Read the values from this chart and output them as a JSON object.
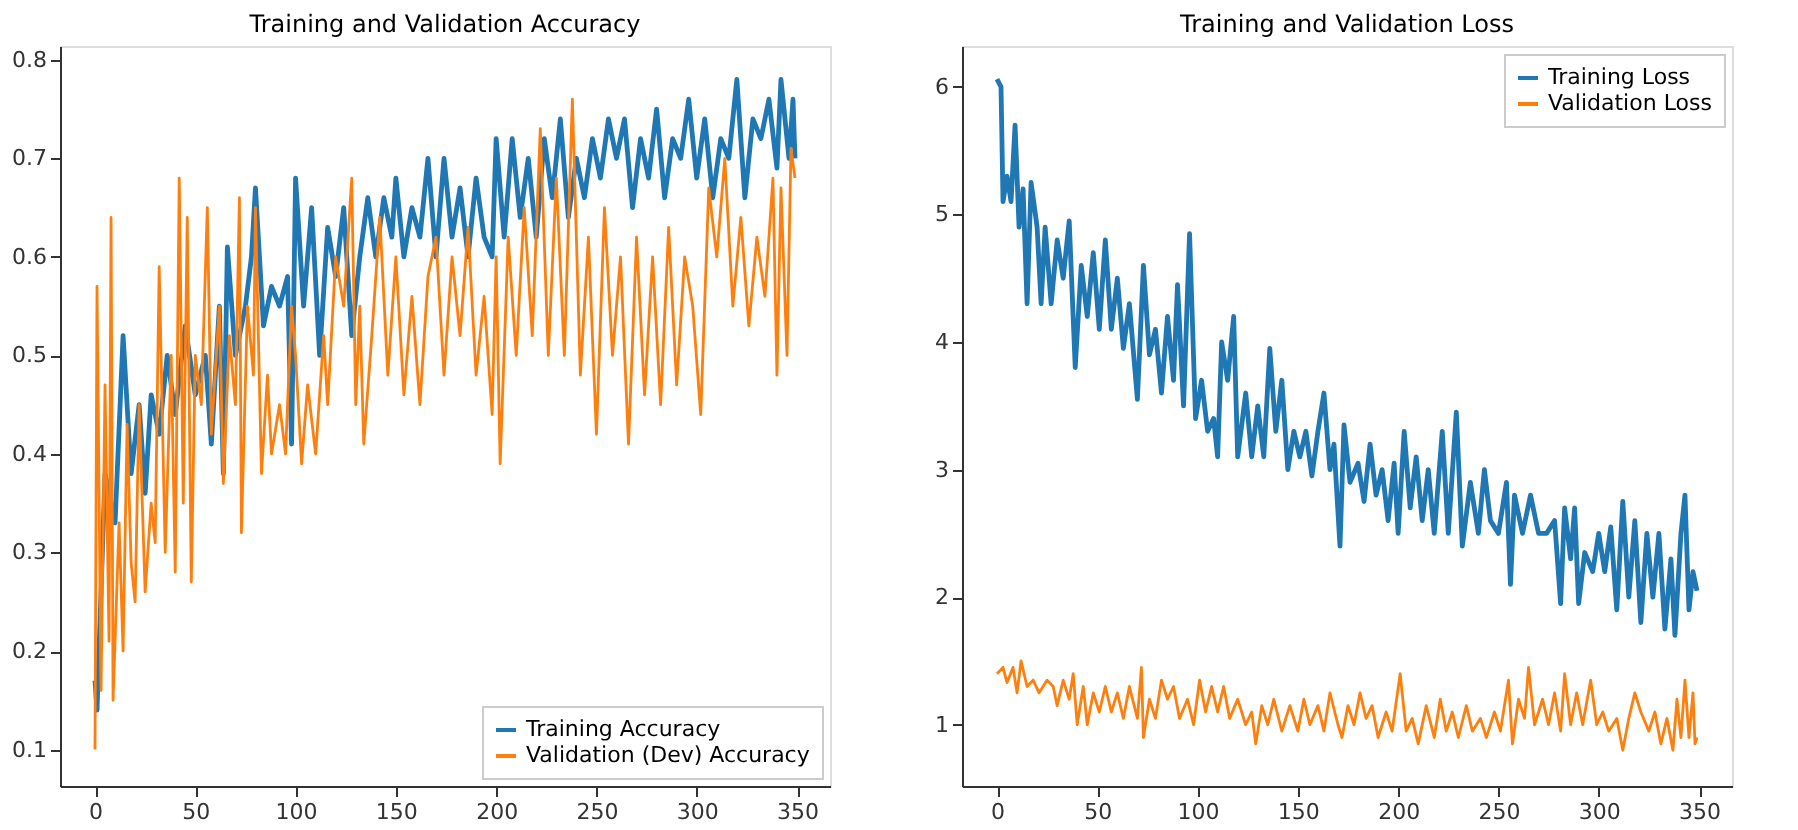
{
  "chart_data": [
    {
      "type": "line",
      "title": "Training and Validation Accuracy",
      "xlim": [
        -17.45,
        366.45
      ],
      "ylim": [
        0.063,
        0.814
      ],
      "xticks": [
        0,
        50,
        100,
        150,
        200,
        250,
        300,
        350
      ],
      "yticks": [
        0.1,
        0.2,
        0.3,
        0.4,
        0.5,
        0.6,
        0.7,
        0.8
      ],
      "grid": false,
      "legend": "bottom right",
      "series": [
        {
          "name": "Training Accuracy",
          "color": "#1f77b4",
          "x": [
            0,
            1,
            5,
            10,
            14,
            18,
            22,
            25,
            28,
            32,
            36,
            40,
            45,
            50,
            55,
            58,
            62,
            64,
            66,
            70,
            75,
            78,
            80,
            84,
            88,
            92,
            96,
            98,
            100,
            104,
            108,
            112,
            116,
            120,
            124,
            128,
            132,
            136,
            140,
            144,
            148,
            150,
            154,
            158,
            162,
            166,
            170,
            174,
            178,
            182,
            186,
            190,
            194,
            198,
            200,
            204,
            208,
            212,
            216,
            220,
            224,
            228,
            232,
            236,
            240,
            244,
            248,
            252,
            256,
            260,
            264,
            268,
            272,
            276,
            280,
            284,
            288,
            292,
            296,
            300,
            304,
            308,
            312,
            316,
            320,
            324,
            328,
            332,
            336,
            340,
            342,
            346,
            348,
            349
          ],
          "values": [
            0.17,
            0.14,
            0.38,
            0.33,
            0.52,
            0.38,
            0.45,
            0.36,
            0.46,
            0.42,
            0.5,
            0.44,
            0.53,
            0.46,
            0.5,
            0.41,
            0.55,
            0.38,
            0.61,
            0.5,
            0.55,
            0.6,
            0.67,
            0.53,
            0.57,
            0.55,
            0.58,
            0.41,
            0.68,
            0.55,
            0.65,
            0.5,
            0.63,
            0.58,
            0.65,
            0.52,
            0.6,
            0.66,
            0.6,
            0.66,
            0.62,
            0.68,
            0.6,
            0.65,
            0.62,
            0.7,
            0.6,
            0.7,
            0.62,
            0.67,
            0.6,
            0.68,
            0.62,
            0.6,
            0.72,
            0.62,
            0.72,
            0.64,
            0.7,
            0.62,
            0.72,
            0.66,
            0.74,
            0.64,
            0.7,
            0.66,
            0.72,
            0.68,
            0.74,
            0.7,
            0.74,
            0.65,
            0.72,
            0.68,
            0.75,
            0.66,
            0.72,
            0.7,
            0.76,
            0.68,
            0.74,
            0.66,
            0.72,
            0.7,
            0.78,
            0.66,
            0.74,
            0.72,
            0.76,
            0.69,
            0.78,
            0.7,
            0.76,
            0.7
          ]
        },
        {
          "name": "Validation (Dev) Accuracy",
          "color": "#ff7f0e",
          "x": [
            0,
            1,
            3,
            5,
            7,
            8,
            9,
            12,
            14,
            16,
            18,
            20,
            22,
            25,
            28,
            30,
            32,
            35,
            38,
            40,
            42,
            44,
            46,
            48,
            50,
            53,
            56,
            58,
            62,
            64,
            67,
            70,
            72,
            73,
            76,
            79,
            80,
            83,
            86,
            88,
            92,
            95,
            98,
            100,
            103,
            106,
            110,
            114,
            116,
            120,
            124,
            128,
            130,
            132,
            134,
            138,
            142,
            146,
            150,
            154,
            158,
            162,
            166,
            170,
            174,
            178,
            182,
            186,
            190,
            194,
            198,
            200,
            202,
            206,
            210,
            214,
            218,
            222,
            226,
            230,
            234,
            238,
            242,
            246,
            250,
            254,
            258,
            262,
            266,
            270,
            274,
            278,
            282,
            286,
            290,
            294,
            298,
            302,
            306,
            310,
            314,
            318,
            322,
            326,
            330,
            334,
            338,
            340,
            342,
            345,
            347,
            349
          ],
          "values": [
            0.1,
            0.57,
            0.16,
            0.47,
            0.21,
            0.64,
            0.15,
            0.33,
            0.2,
            0.43,
            0.29,
            0.25,
            0.45,
            0.26,
            0.35,
            0.31,
            0.59,
            0.3,
            0.5,
            0.28,
            0.68,
            0.35,
            0.64,
            0.27,
            0.5,
            0.45,
            0.65,
            0.42,
            0.55,
            0.37,
            0.52,
            0.45,
            0.66,
            0.32,
            0.55,
            0.48,
            0.65,
            0.38,
            0.48,
            0.4,
            0.45,
            0.4,
            0.55,
            0.5,
            0.39,
            0.47,
            0.4,
            0.52,
            0.45,
            0.6,
            0.55,
            0.68,
            0.45,
            0.55,
            0.41,
            0.52,
            0.64,
            0.48,
            0.6,
            0.46,
            0.56,
            0.45,
            0.58,
            0.62,
            0.48,
            0.6,
            0.52,
            0.63,
            0.48,
            0.56,
            0.44,
            0.6,
            0.39,
            0.62,
            0.5,
            0.65,
            0.52,
            0.73,
            0.5,
            0.68,
            0.5,
            0.76,
            0.48,
            0.62,
            0.42,
            0.65,
            0.5,
            0.6,
            0.41,
            0.62,
            0.46,
            0.6,
            0.45,
            0.63,
            0.47,
            0.6,
            0.55,
            0.44,
            0.67,
            0.6,
            0.7,
            0.55,
            0.64,
            0.53,
            0.62,
            0.56,
            0.68,
            0.48,
            0.67,
            0.5,
            0.71,
            0.68
          ]
        }
      ]
    },
    {
      "type": "line",
      "title": "Training and Validation Loss",
      "xlim": [
        -17.45,
        366.45
      ],
      "ylim": [
        0.52,
        6.32
      ],
      "xticks": [
        0,
        50,
        100,
        150,
        200,
        250,
        300,
        350
      ],
      "yticks": [
        1,
        2,
        3,
        4,
        5,
        6
      ],
      "grid": false,
      "legend": "top right",
      "series": [
        {
          "name": "Training Loss",
          "color": "#1f77b4",
          "x": [
            0,
            2,
            3,
            5,
            7,
            9,
            11,
            13,
            15,
            17,
            20,
            22,
            24,
            27,
            30,
            33,
            36,
            39,
            42,
            45,
            48,
            51,
            54,
            57,
            60,
            63,
            66,
            70,
            73,
            76,
            79,
            82,
            85,
            88,
            90,
            93,
            96,
            99,
            102,
            105,
            108,
            110,
            112,
            115,
            118,
            120,
            124,
            127,
            130,
            133,
            136,
            139,
            142,
            145,
            148,
            151,
            154,
            157,
            160,
            163,
            166,
            168,
            171,
            173,
            176,
            180,
            183,
            186,
            189,
            192,
            195,
            198,
            200,
            203,
            206,
            209,
            212,
            215,
            218,
            222,
            225,
            229,
            232,
            236,
            240,
            243,
            246,
            250,
            254,
            256,
            258,
            262,
            266,
            270,
            274,
            278,
            281,
            283,
            286,
            288,
            290,
            293,
            297,
            300,
            303,
            306,
            309,
            312,
            315,
            318,
            321,
            324,
            327,
            330,
            333,
            336,
            338,
            341,
            343,
            345,
            347,
            349
          ],
          "values": [
            6.06,
            6.0,
            5.1,
            5.3,
            5.1,
            5.7,
            4.9,
            5.2,
            4.3,
            5.25,
            4.9,
            4.3,
            4.9,
            4.3,
            4.8,
            4.5,
            4.95,
            3.8,
            4.6,
            4.2,
            4.7,
            4.1,
            4.8,
            4.1,
            4.5,
            3.95,
            4.3,
            3.55,
            4.6,
            3.9,
            4.1,
            3.6,
            4.2,
            3.7,
            4.45,
            3.5,
            4.85,
            3.4,
            3.7,
            3.3,
            3.4,
            3.1,
            4.0,
            3.7,
            4.2,
            3.1,
            3.6,
            3.1,
            3.5,
            3.1,
            3.95,
            3.3,
            3.7,
            3.0,
            3.3,
            3.1,
            3.3,
            2.95,
            3.3,
            3.6,
            3.0,
            3.2,
            2.4,
            3.35,
            2.9,
            3.05,
            2.75,
            3.2,
            2.8,
            3.0,
            2.6,
            3.05,
            2.5,
            3.3,
            2.7,
            3.1,
            2.6,
            3.0,
            2.5,
            3.3,
            2.5,
            3.45,
            2.4,
            2.9,
            2.5,
            3.0,
            2.6,
            2.5,
            2.9,
            2.1,
            2.8,
            2.5,
            2.8,
            2.5,
            2.5,
            2.6,
            1.95,
            2.7,
            2.3,
            2.7,
            1.95,
            2.35,
            2.2,
            2.5,
            2.2,
            2.55,
            1.9,
            2.75,
            2.0,
            2.6,
            1.8,
            2.5,
            2.0,
            2.5,
            1.75,
            2.3,
            1.7,
            2.5,
            2.8,
            1.9,
            2.2,
            2.05
          ]
        },
        {
          "name": "Validation Loss",
          "color": "#ff7f0e",
          "x": [
            0,
            3,
            5,
            8,
            10,
            12,
            15,
            18,
            21,
            25,
            28,
            30,
            33,
            36,
            38,
            40,
            43,
            45,
            48,
            51,
            54,
            57,
            60,
            63,
            66,
            70,
            72,
            73,
            76,
            79,
            82,
            85,
            88,
            91,
            95,
            98,
            101,
            104,
            107,
            110,
            113,
            116,
            120,
            124,
            127,
            129,
            132,
            135,
            138,
            142,
            146,
            150,
            153,
            156,
            160,
            163,
            166,
            170,
            172,
            175,
            178,
            181,
            184,
            187,
            190,
            194,
            197,
            201,
            204,
            207,
            210,
            214,
            218,
            221,
            224,
            227,
            230,
            234,
            237,
            241,
            244,
            248,
            251,
            255,
            257,
            260,
            263,
            265,
            268,
            272,
            275,
            278,
            281,
            283,
            286,
            289,
            292,
            296,
            299,
            302,
            305,
            309,
            312,
            315,
            318,
            321,
            325,
            328,
            331,
            334,
            337,
            339,
            341,
            343,
            345,
            347,
            348,
            349
          ],
          "values": [
            1.4,
            1.45,
            1.33,
            1.45,
            1.25,
            1.5,
            1.3,
            1.35,
            1.25,
            1.35,
            1.3,
            1.15,
            1.35,
            1.2,
            1.4,
            1.0,
            1.3,
            1.0,
            1.25,
            1.1,
            1.3,
            1.1,
            1.25,
            1.05,
            1.3,
            1.05,
            1.45,
            0.9,
            1.2,
            1.05,
            1.35,
            1.2,
            1.3,
            1.05,
            1.2,
            1.0,
            1.35,
            1.1,
            1.3,
            1.1,
            1.3,
            1.05,
            1.2,
            1.0,
            1.1,
            0.85,
            1.15,
            1.0,
            1.2,
            0.95,
            1.15,
            0.95,
            1.2,
            1.0,
            1.15,
            0.95,
            1.25,
            1.0,
            0.9,
            1.15,
            1.0,
            1.25,
            1.05,
            1.15,
            0.9,
            1.1,
            0.95,
            1.4,
            0.95,
            1.05,
            0.85,
            1.15,
            0.9,
            1.2,
            0.95,
            1.1,
            0.9,
            1.15,
            0.95,
            1.05,
            0.9,
            1.1,
            0.95,
            1.35,
            0.85,
            1.2,
            1.05,
            1.45,
            1.0,
            1.2,
            1.0,
            1.25,
            0.95,
            1.4,
            1.0,
            1.25,
            1.0,
            1.35,
            1.0,
            1.1,
            0.95,
            1.05,
            0.8,
            1.05,
            1.25,
            1.1,
            0.95,
            1.1,
            0.85,
            1.05,
            0.8,
            1.2,
            0.9,
            1.35,
            0.9,
            1.25,
            0.85,
            0.9
          ]
        }
      ]
    }
  ]
}
